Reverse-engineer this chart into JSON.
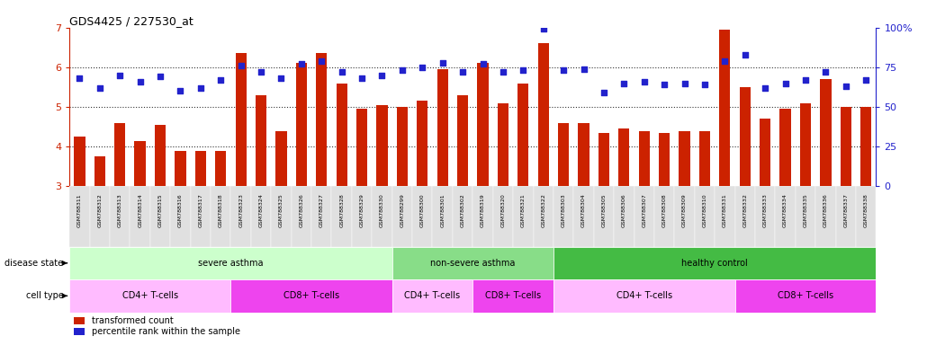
{
  "title": "GDS4425 / 227530_at",
  "samples": [
    "GSM788311",
    "GSM788312",
    "GSM788313",
    "GSM788314",
    "GSM788315",
    "GSM788316",
    "GSM788317",
    "GSM788318",
    "GSM788323",
    "GSM788324",
    "GSM788325",
    "GSM788326",
    "GSM788327",
    "GSM788328",
    "GSM788329",
    "GSM788330",
    "GSM788299",
    "GSM788300",
    "GSM788301",
    "GSM788302",
    "GSM788319",
    "GSM788320",
    "GSM788321",
    "GSM788322",
    "GSM788303",
    "GSM788304",
    "GSM788305",
    "GSM788306",
    "GSM788307",
    "GSM788308",
    "GSM788309",
    "GSM788310",
    "GSM788331",
    "GSM788332",
    "GSM788333",
    "GSM788334",
    "GSM788335",
    "GSM788336",
    "GSM788337",
    "GSM788338"
  ],
  "bar_values": [
    4.25,
    3.75,
    4.6,
    4.15,
    4.55,
    3.9,
    3.9,
    3.9,
    6.35,
    5.3,
    4.4,
    6.1,
    6.35,
    5.6,
    4.95,
    5.05,
    5.0,
    5.15,
    5.95,
    5.3,
    6.1,
    5.1,
    5.6,
    6.6,
    4.6,
    4.6,
    4.35,
    4.45,
    4.4,
    4.35,
    4.4,
    4.4,
    6.95,
    5.5,
    4.7,
    4.95,
    5.1,
    5.7,
    5.0,
    5.0
  ],
  "dot_values": [
    68,
    62,
    70,
    66,
    69,
    60,
    62,
    67,
    76,
    72,
    68,
    77,
    79,
    72,
    68,
    70,
    73,
    75,
    78,
    72,
    77,
    72,
    73,
    99,
    73,
    74,
    59,
    65,
    66,
    64,
    65,
    64,
    79,
    83,
    62,
    65,
    67,
    72,
    63,
    67
  ],
  "ylim_left": [
    3,
    7
  ],
  "ylim_right": [
    0,
    100
  ],
  "yticks_left": [
    3,
    4,
    5,
    6,
    7
  ],
  "yticks_right": [
    0,
    25,
    50,
    75,
    100
  ],
  "bar_color": "#cc2200",
  "dot_color": "#2222cc",
  "disease_state": [
    {
      "label": "severe asthma",
      "start": 0,
      "end": 16,
      "color": "#ccffcc"
    },
    {
      "label": "non-severe asthma",
      "start": 16,
      "end": 24,
      "color": "#88dd88"
    },
    {
      "label": "healthy control",
      "start": 24,
      "end": 40,
      "color": "#44bb44"
    }
  ],
  "cell_type": [
    {
      "label": "CD4+ T-cells",
      "start": 0,
      "end": 8,
      "color": "#ffbbff"
    },
    {
      "label": "CD8+ T-cells",
      "start": 8,
      "end": 16,
      "color": "#ee44ee"
    },
    {
      "label": "CD4+ T-cells",
      "start": 16,
      "end": 20,
      "color": "#ffbbff"
    },
    {
      "label": "CD8+ T-cells",
      "start": 20,
      "end": 24,
      "color": "#ee44ee"
    },
    {
      "label": "CD4+ T-cells",
      "start": 24,
      "end": 33,
      "color": "#ffbbff"
    },
    {
      "label": "CD8+ T-cells",
      "start": 33,
      "end": 40,
      "color": "#ee44ee"
    }
  ],
  "legend_bar_label": "transformed count",
  "legend_dot_label": "percentile rank within the sample",
  "bg_color": "#ffffff",
  "tick_color_left": "#cc2200",
  "tick_color_right": "#2222cc",
  "plot_bg": "#ffffff",
  "grid_dotted_color": "#333333"
}
